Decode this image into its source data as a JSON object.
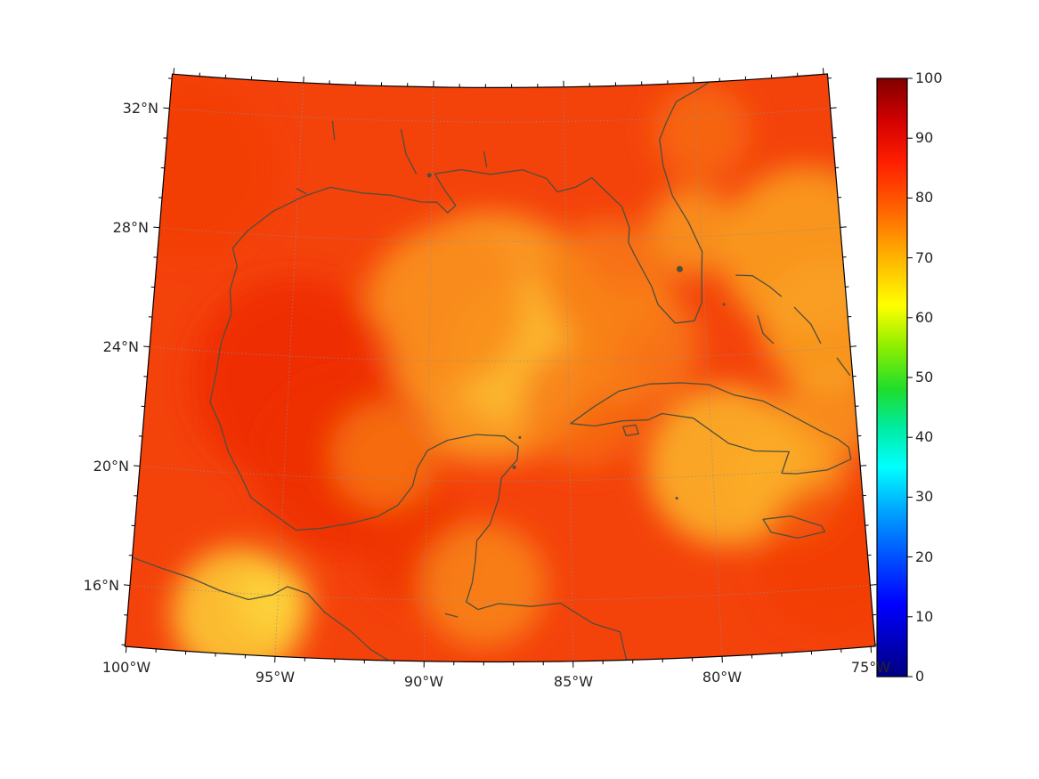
{
  "figure": {
    "background_color": "#ffffff",
    "description": "Filled geographic heatmap of the Gulf of Mexico / northwest Caribbean region with coastlines, dotted graticule and a vertical 0-100 jet colorbar"
  },
  "map": {
    "lat_tick_labels": [
      "32°N",
      "28°N",
      "24°N",
      "20°N",
      "16°N"
    ],
    "lon_tick_labels": [
      "100°W",
      "95°W",
      "90°W",
      "85°W",
      "80°W",
      "75°W"
    ],
    "coastline_color": "#4f4f3c",
    "base_field_color": "#f4420b",
    "gridline_style": "dotted gray"
  },
  "colorbar": {
    "min": 0,
    "max": 100,
    "orientation": "vertical",
    "position": "right",
    "colormap": "jet",
    "tick_labels": [
      "100",
      "90",
      "80",
      "70",
      "60",
      "50",
      "40",
      "30",
      "20",
      "10",
      "0"
    ],
    "gradient_bottom_to_top": [
      "#000080",
      "#0000ff",
      "#0050ff",
      "#00a8ff",
      "#00ffff",
      "#1fdd2c",
      "#8aee00",
      "#ffff00",
      "#ffb400",
      "#ff6400",
      "#ff1e00",
      "#d20000",
      "#800000"
    ]
  },
  "chart_data": {
    "type": "heatmap",
    "title": "",
    "xlabel": "",
    "ylabel": "",
    "region": "Gulf of Mexico, Florida, Yucatan, Cuba and northwest Caribbean",
    "x_tick_labels": [
      "100°W",
      "95°W",
      "90°W",
      "85°W",
      "80°W",
      "75°W"
    ],
    "y_tick_labels": [
      "32°N",
      "28°N",
      "24°N",
      "20°N",
      "16°N"
    ],
    "lon_range": [
      -100,
      -75
    ],
    "lat_range": [
      14,
      33
    ],
    "colorbar_range": [
      0,
      100
    ],
    "colormap": "jet",
    "grid": "dotted graticule every 5 deg lon / 4 deg lat",
    "legend": "none",
    "x": [
      -100,
      -95,
      -90,
      -85,
      -80,
      -75
    ],
    "y": [
      32,
      28,
      24,
      20,
      16
    ],
    "series": [
      {
        "name": "lat 32N",
        "values": [
          82,
          82,
          80,
          79,
          78,
          80
        ]
      },
      {
        "name": "lat 28N",
        "values": [
          83,
          82,
          80,
          77,
          74,
          78
        ]
      },
      {
        "name": "lat 24N",
        "values": [
          83,
          85,
          73,
          75,
          79,
          80
        ]
      },
      {
        "name": "lat 20N",
        "values": [
          84,
          86,
          83,
          77,
          71,
          74
        ]
      },
      {
        "name": "lat 16N",
        "values": [
          80,
          70,
          79,
          75,
          73,
          77
        ]
      }
    ],
    "notes": "Field values mostly 70-90: broad red-orange ~80-85 over most of the domain, yellow-orange minima ~68-73 over the central Gulf, Atlantic east of Florida, NW Caribbean south of Cuba and the Pacific coast near Oaxaca; deeper red maxima ~85-88 in the western Gulf and Bay of Campeche."
  }
}
